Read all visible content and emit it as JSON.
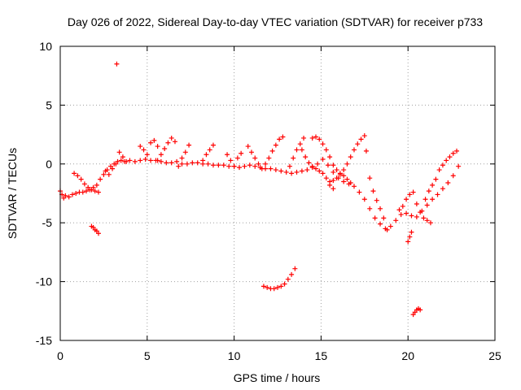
{
  "chart_data": {
    "type": "scatter",
    "title": "Day 026 of 2022, Sidereal Day-to-day VTEC variation (SDTVAR) for receiver p733",
    "xlabel": "GPS time / hours",
    "ylabel": "SDTVAR / TECUs",
    "xlim": [
      0,
      25
    ],
    "ylim": [
      -15,
      10
    ],
    "xticks": [
      0,
      5,
      10,
      15,
      20,
      25
    ],
    "yticks": [
      10,
      5,
      0,
      -5,
      -10,
      -15
    ],
    "grid": true,
    "marker": "+",
    "series_color": "#ff0000",
    "series": [
      {
        "name": "SDTVAR",
        "x": [
          0.0,
          0.1,
          0.2,
          0.3,
          0.5,
          0.7,
          0.9,
          1.1,
          1.3,
          1.5,
          1.7,
          1.9,
          2.1,
          2.3,
          2.5,
          2.7,
          2.9,
          3.1,
          3.3,
          3.5,
          3.7,
          4.0,
          4.3,
          4.6,
          4.9,
          5.2,
          5.5,
          5.8,
          6.1,
          6.4,
          6.7,
          7.0,
          7.3,
          7.6,
          7.9,
          8.2,
          8.5,
          8.8,
          9.1,
          9.4,
          9.7,
          10.0,
          10.3,
          10.6,
          10.9,
          11.2,
          11.5,
          11.8,
          12.1,
          12.4,
          12.7,
          13.0,
          13.3,
          13.6,
          13.9,
          14.2,
          14.5,
          14.8,
          15.1,
          15.4,
          15.7,
          16.0,
          16.3,
          16.6,
          16.9,
          17.2,
          17.5,
          17.8,
          18.1,
          18.4,
          18.7,
          19.0,
          19.3,
          19.6,
          19.9,
          20.2,
          20.5,
          20.8,
          21.1,
          21.4,
          21.7,
          22.0,
          22.3,
          22.6,
          22.9,
          0.8,
          1.0,
          1.2,
          1.4,
          1.6,
          1.8,
          2.0,
          2.2,
          2.6,
          2.8,
          3.0,
          3.2,
          3.4,
          3.6,
          3.8,
          4.6,
          4.8,
          5.0,
          5.2,
          5.4,
          5.6,
          5.6,
          5.8,
          6.0,
          6.2,
          6.4,
          6.6,
          6.8,
          7.0,
          7.2,
          7.4,
          8.2,
          8.4,
          8.6,
          8.8,
          9.6,
          9.8,
          10.0,
          10.2,
          10.4,
          10.8,
          11.0,
          11.2,
          11.4,
          11.6,
          11.8,
          12.0,
          12.2,
          12.4,
          12.6,
          12.8,
          13.2,
          13.4,
          13.6,
          13.8,
          14.0,
          13.9,
          14.1,
          14.3,
          14.5,
          14.7,
          14.9,
          15.1,
          15.3,
          15.5,
          15.7,
          14.5,
          14.7,
          14.9,
          15.1,
          15.3,
          15.5,
          15.7,
          15.9,
          16.1,
          16.3,
          16.5,
          16.7,
          15.5,
          15.7,
          15.9,
          16.1,
          16.3,
          16.5,
          16.7,
          16.9,
          17.1,
          17.3,
          17.5,
          17.6,
          17.8,
          18.0,
          18.2,
          18.4,
          18.6,
          18.8,
          19.5,
          19.7,
          19.9,
          20.1,
          20.3,
          20.5,
          20.7,
          20.9,
          21.1,
          21.3,
          21.0,
          21.2,
          21.4,
          21.6,
          21.8,
          22.0,
          22.2,
          22.4,
          22.6,
          22.8,
          20.0,
          20.1,
          20.2,
          1.8,
          1.9,
          2.0,
          2.1,
          2.2,
          3.25,
          11.7,
          11.9,
          12.1,
          12.3,
          12.5,
          12.7,
          12.9,
          13.1,
          13.3,
          13.5,
          20.3,
          20.4,
          20.5,
          20.6,
          20.7
        ],
        "y": [
          -2.3,
          -2.6,
          -2.9,
          -2.7,
          -2.8,
          -2.6,
          -2.5,
          -2.4,
          -2.4,
          -2.3,
          -2.2,
          -2.0,
          -1.8,
          -1.3,
          -0.9,
          -0.5,
          -0.2,
          0.0,
          0.2,
          0.3,
          0.2,
          0.3,
          0.2,
          0.3,
          0.4,
          0.3,
          0.3,
          0.2,
          0.1,
          0.1,
          0.2,
          0.0,
          0.0,
          0.1,
          0.1,
          0.0,
          0.0,
          -0.1,
          -0.1,
          -0.1,
          -0.2,
          -0.2,
          -0.3,
          -0.2,
          -0.1,
          -0.2,
          -0.3,
          -0.4,
          -0.4,
          -0.5,
          -0.6,
          -0.7,
          -0.8,
          -0.7,
          -0.6,
          -0.5,
          -0.3,
          0.0,
          0.4,
          -0.1,
          -0.7,
          -1.2,
          -1.5,
          -1.7,
          -1.9,
          -2.4,
          -3.0,
          -3.8,
          -4.6,
          -5.1,
          -5.5,
          -5.3,
          -4.8,
          -4.3,
          -4.2,
          -4.4,
          -4.5,
          -4.0,
          -3.5,
          -3.0,
          -2.6,
          -2.1,
          -1.6,
          -1.0,
          -0.2,
          -0.8,
          -1.0,
          -1.3,
          -1.7,
          -2.0,
          -2.2,
          -2.3,
          -2.4,
          -0.6,
          -0.9,
          -0.4,
          0.0,
          1.0,
          0.6,
          0.2,
          1.5,
          1.2,
          0.8,
          1.8,
          2.0,
          1.5,
          0.3,
          0.8,
          1.3,
          1.8,
          2.2,
          1.9,
          -0.2,
          0.5,
          1.0,
          1.6,
          0.3,
          0.8,
          1.2,
          1.6,
          0.8,
          0.3,
          -0.2,
          0.5,
          0.9,
          1.5,
          1.0,
          0.5,
          0.0,
          -0.4,
          0.0,
          0.5,
          1.1,
          1.6,
          2.1,
          2.3,
          -0.2,
          0.5,
          1.2,
          1.7,
          2.2,
          1.2,
          0.6,
          0.1,
          -0.2,
          -0.4,
          -0.6,
          -0.8,
          -1.2,
          -1.8,
          -2.1,
          2.2,
          2.3,
          2.1,
          1.7,
          1.2,
          0.6,
          -0.1,
          -0.5,
          -0.8,
          -1.0,
          -1.3,
          -1.6,
          -1.5,
          -1.4,
          -1.2,
          -0.9,
          -0.5,
          0.0,
          0.6,
          1.2,
          1.7,
          2.1,
          2.4,
          1.1,
          -1.2,
          -2.3,
          -3.1,
          -3.8,
          -4.6,
          -5.6,
          -3.9,
          -3.6,
          -3.0,
          -2.6,
          -2.4,
          -3.4,
          -4.1,
          -4.6,
          -4.8,
          -5.0,
          -3.0,
          -2.3,
          -1.8,
          -1.3,
          -0.5,
          -0.1,
          0.3,
          0.6,
          0.9,
          1.1,
          -6.6,
          -6.2,
          -5.8,
          -5.3,
          -5.4,
          -5.6,
          -5.7,
          -5.9,
          8.5,
          -10.4,
          -10.5,
          -10.6,
          -10.6,
          -10.5,
          -10.4,
          -10.2,
          -9.8,
          -9.4,
          -8.9,
          -12.8,
          -12.6,
          -12.4,
          -12.3,
          -12.4
        ]
      }
    ]
  }
}
